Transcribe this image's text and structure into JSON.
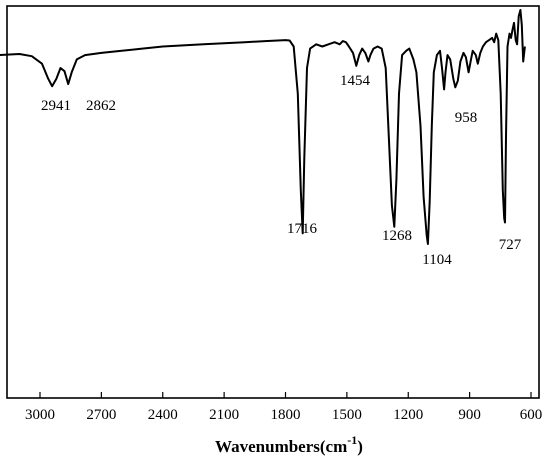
{
  "chart_data": {
    "type": "line",
    "title": "",
    "xlabel": "Wavenumbers(cm",
    "xlabel_superscript": "-1",
    "xlabel_suffix": ")",
    "ylabel": "",
    "x_reversed": true,
    "xlim": [
      3200,
      600
    ],
    "xticks": [
      3000,
      2700,
      2400,
      2100,
      1800,
      1500,
      1200,
      900,
      600
    ],
    "y_ticks_shown": false,
    "grid": false,
    "series": [
      {
        "points": [
          [
            3200,
            0.12
          ],
          [
            3100,
            0.115
          ],
          [
            3040,
            0.125
          ],
          [
            2990,
            0.16
          ],
          [
            2960,
            0.23
          ],
          [
            2941,
            0.265
          ],
          [
            2920,
            0.23
          ],
          [
            2900,
            0.18
          ],
          [
            2880,
            0.195
          ],
          [
            2862,
            0.255
          ],
          [
            2845,
            0.2
          ],
          [
            2820,
            0.14
          ],
          [
            2780,
            0.12
          ],
          [
            2700,
            0.11
          ],
          [
            2600,
            0.1
          ],
          [
            2500,
            0.09
          ],
          [
            2400,
            0.08
          ],
          [
            2300,
            0.075
          ],
          [
            2200,
            0.07
          ],
          [
            2100,
            0.065
          ],
          [
            2000,
            0.06
          ],
          [
            1900,
            0.055
          ],
          [
            1800,
            0.05
          ],
          [
            1780,
            0.052
          ],
          [
            1760,
            0.08
          ],
          [
            1740,
            0.3
          ],
          [
            1725,
            0.75
          ],
          [
            1716,
            0.95
          ],
          [
            1708,
            0.6
          ],
          [
            1695,
            0.18
          ],
          [
            1680,
            0.09
          ],
          [
            1650,
            0.07
          ],
          [
            1620,
            0.08
          ],
          [
            1590,
            0.07
          ],
          [
            1560,
            0.06
          ],
          [
            1535,
            0.07
          ],
          [
            1520,
            0.055
          ],
          [
            1505,
            0.06
          ],
          [
            1490,
            0.08
          ],
          [
            1470,
            0.11
          ],
          [
            1454,
            0.17
          ],
          [
            1440,
            0.12
          ],
          [
            1425,
            0.09
          ],
          [
            1410,
            0.11
          ],
          [
            1395,
            0.15
          ],
          [
            1385,
            0.12
          ],
          [
            1370,
            0.09
          ],
          [
            1350,
            0.08
          ],
          [
            1330,
            0.09
          ],
          [
            1310,
            0.18
          ],
          [
            1295,
            0.5
          ],
          [
            1280,
            0.82
          ],
          [
            1268,
            0.92
          ],
          [
            1258,
            0.7
          ],
          [
            1245,
            0.3
          ],
          [
            1230,
            0.12
          ],
          [
            1210,
            0.1
          ],
          [
            1195,
            0.09
          ],
          [
            1175,
            0.14
          ],
          [
            1160,
            0.2
          ],
          [
            1140,
            0.45
          ],
          [
            1125,
            0.78
          ],
          [
            1110,
            0.96
          ],
          [
            1104,
            1.0
          ],
          [
            1095,
            0.8
          ],
          [
            1085,
            0.45
          ],
          [
            1075,
            0.2
          ],
          [
            1060,
            0.12
          ],
          [
            1045,
            0.1
          ],
          [
            1035,
            0.18
          ],
          [
            1025,
            0.28
          ],
          [
            1018,
            0.2
          ],
          [
            1008,
            0.12
          ],
          [
            995,
            0.14
          ],
          [
            980,
            0.23
          ],
          [
            970,
            0.27
          ],
          [
            958,
            0.24
          ],
          [
            945,
            0.15
          ],
          [
            930,
            0.11
          ],
          [
            918,
            0.13
          ],
          [
            905,
            0.2
          ],
          [
            895,
            0.15
          ],
          [
            885,
            0.1
          ],
          [
            870,
            0.12
          ],
          [
            860,
            0.16
          ],
          [
            848,
            0.11
          ],
          [
            835,
            0.08
          ],
          [
            820,
            0.06
          ],
          [
            805,
            0.05
          ],
          [
            790,
            0.04
          ],
          [
            780,
            0.06
          ],
          [
            770,
            0.02
          ],
          [
            760,
            0.05
          ],
          [
            748,
            0.3
          ],
          [
            738,
            0.75
          ],
          [
            731,
            0.88
          ],
          [
            727,
            0.9
          ],
          [
            722,
            0.5
          ],
          [
            715,
            0.08
          ],
          [
            705,
            0.02
          ],
          [
            698,
            0.04
          ],
          [
            690,
            0.0
          ],
          [
            683,
            -0.03
          ],
          [
            675,
            0.05
          ],
          [
            668,
            0.07
          ],
          [
            660,
            -0.06
          ],
          [
            652,
            -0.09
          ],
          [
            645,
            -0.02
          ],
          [
            638,
            0.15
          ],
          [
            630,
            0.08
          ]
        ]
      }
    ],
    "annotations": [
      {
        "label": "2941",
        "x": 2941
      },
      {
        "label": "2862",
        "x": 2862
      },
      {
        "label": "1454",
        "x": 1454
      },
      {
        "label": "1716",
        "x": 1716
      },
      {
        "label": "1268",
        "x": 1268
      },
      {
        "label": "1104",
        "x": 1104
      },
      {
        "label": "958",
        "x": 958
      },
      {
        "label": "727",
        "x": 727
      }
    ]
  }
}
